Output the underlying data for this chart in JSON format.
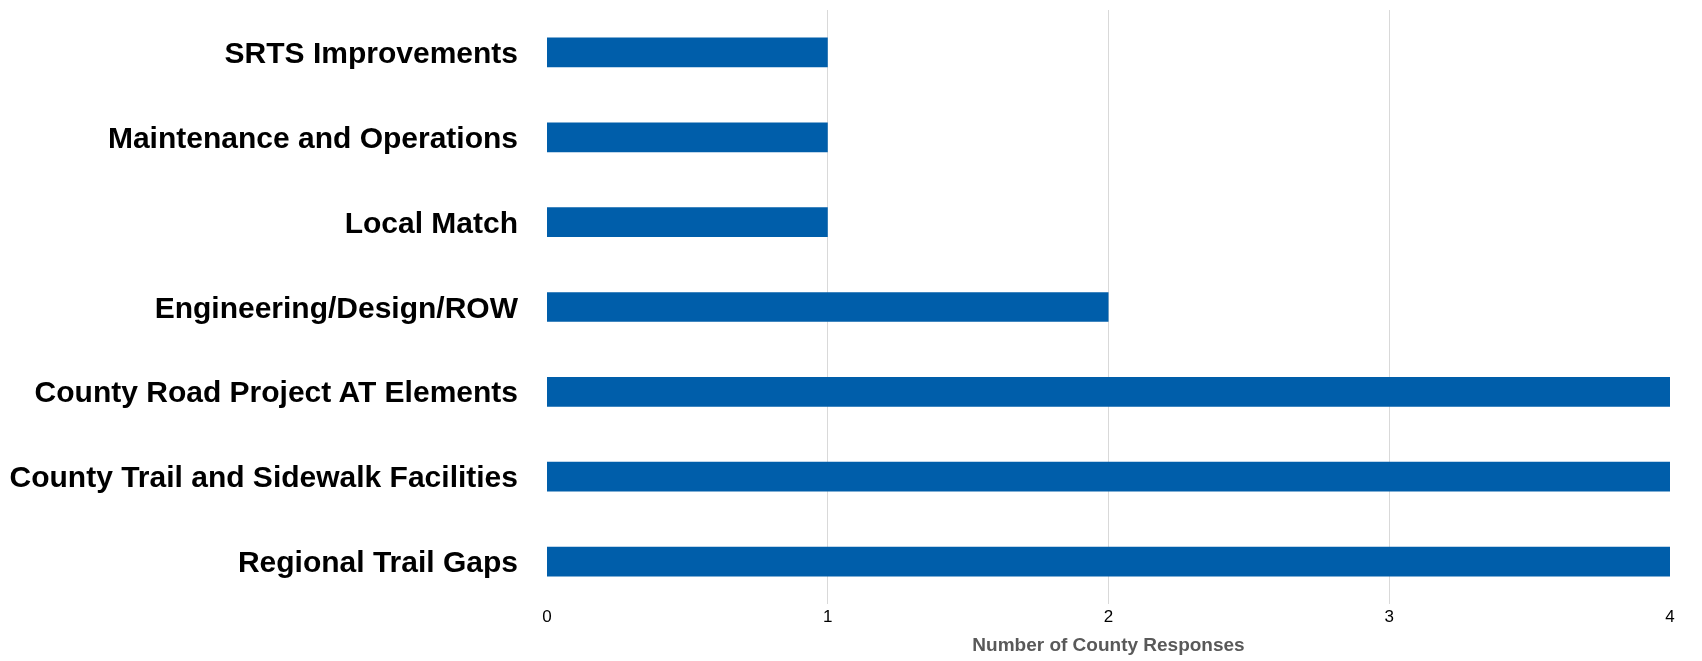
{
  "chart_data": {
    "type": "bar",
    "orientation": "horizontal",
    "xlabel": "Number of County Responses",
    "categories": [
      "SRTS Improvements",
      "Maintenance and Operations",
      "Local Match",
      "Engineering/Design/ROW",
      "County Road Project AT Elements",
      "County Trail and Sidewalk Facilities",
      "Regional Trail Gaps"
    ],
    "values": [
      1,
      1,
      1,
      2,
      4,
      4,
      4
    ],
    "color": "#005eaa",
    "xlim": [
      0,
      4
    ],
    "xticks": [
      0,
      1,
      2,
      3,
      4
    ],
    "grid": "x",
    "legend": false
  }
}
